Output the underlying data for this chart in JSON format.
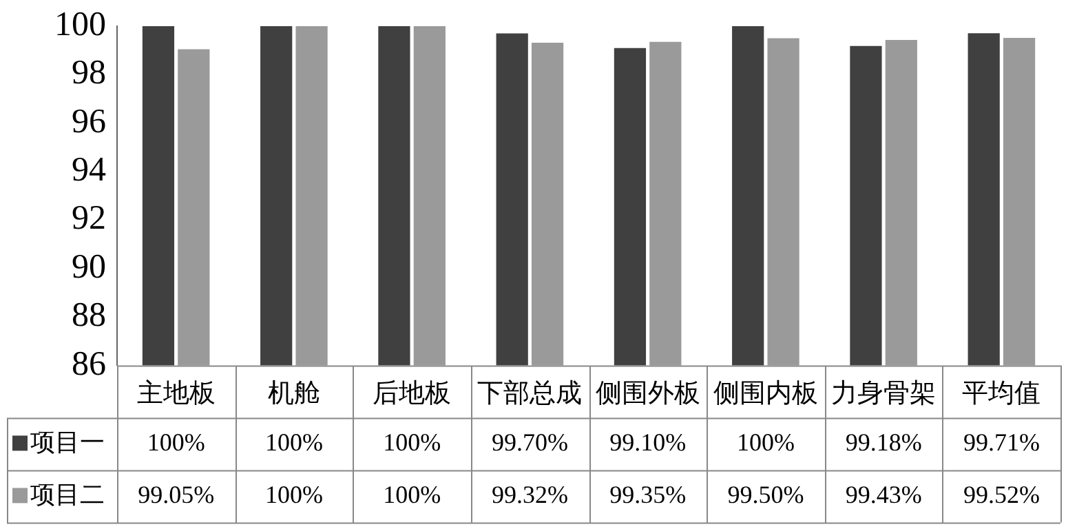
{
  "chart_data": {
    "type": "bar",
    "categories": [
      "主地板",
      "机舱",
      "后地板",
      "下部总成",
      "侧围外板",
      "侧围内板",
      "力身骨架",
      "平均值"
    ],
    "series": [
      {
        "name": "项目一",
        "color": "#404040",
        "values": [
          100,
          100,
          100,
          99.7,
          99.1,
          100,
          99.18,
          99.71
        ],
        "value_labels": [
          "100%",
          "100%",
          "100%",
          "99.70%",
          "99.10%",
          "100%",
          "99.18%",
          "99.71%"
        ]
      },
      {
        "name": "项目二",
        "color": "#9a9a9a",
        "values": [
          99.05,
          100,
          100,
          99.32,
          99.35,
          99.5,
          99.43,
          99.52
        ],
        "value_labels": [
          "99.05%",
          "100%",
          "100%",
          "99.32%",
          "99.35%",
          "99.50%",
          "99.43%",
          "99.52%"
        ]
      }
    ],
    "ylim": [
      86,
      100
    ],
    "yticks": [
      86,
      88,
      90,
      92,
      94,
      96,
      98,
      100
    ],
    "grid": false,
    "legend": "bottom left"
  }
}
